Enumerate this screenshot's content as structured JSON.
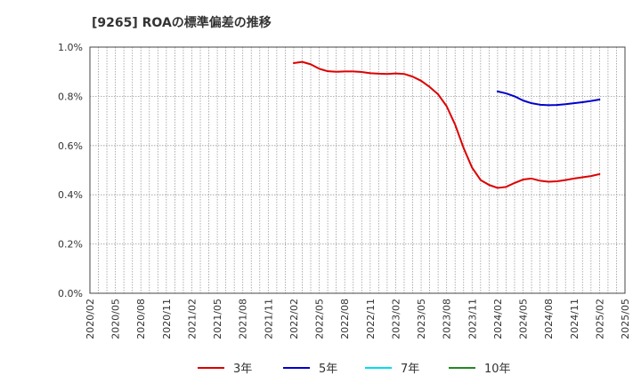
{
  "chart_data": {
    "type": "line",
    "title": "[9265]  ROAの標準偏差の推移",
    "xlabel": "",
    "ylabel": "",
    "ylim": [
      0,
      1.0
    ],
    "y_ticks": [
      0.0,
      0.2,
      0.4,
      0.6,
      0.8,
      1.0
    ],
    "y_tick_labels": [
      "0.0%",
      "0.2%",
      "0.4%",
      "0.6%",
      "0.8%",
      "1.0%"
    ],
    "x_start": "2020/02",
    "x_end": "2025/05",
    "x_tick_labels": [
      "2020/02",
      "2020/05",
      "2020/08",
      "2020/11",
      "2021/02",
      "2021/05",
      "2021/08",
      "2021/11",
      "2022/02",
      "2022/05",
      "2022/08",
      "2022/11",
      "2023/02",
      "2023/05",
      "2023/08",
      "2023/11",
      "2024/02",
      "2024/05",
      "2024/08",
      "2024/11",
      "2025/02",
      "2025/05"
    ],
    "grid": true,
    "legend_position": "bottom",
    "series": [
      {
        "name": "3年",
        "color": "#dd0000",
        "x": [
          "2022/02",
          "2022/03",
          "2022/04",
          "2022/05",
          "2022/06",
          "2022/07",
          "2022/08",
          "2022/09",
          "2022/10",
          "2022/11",
          "2022/12",
          "2023/01",
          "2023/02",
          "2023/03",
          "2023/04",
          "2023/05",
          "2023/06",
          "2023/07",
          "2023/08",
          "2023/09",
          "2023/10",
          "2023/11",
          "2023/12",
          "2024/01",
          "2024/02",
          "2024/03",
          "2024/04",
          "2024/05",
          "2024/06",
          "2024/07",
          "2024/08",
          "2024/09",
          "2024/10",
          "2024/11",
          "2024/12",
          "2025/01",
          "2025/02"
        ],
        "values": [
          0.935,
          0.94,
          0.93,
          0.912,
          0.902,
          0.9,
          0.901,
          0.901,
          0.899,
          0.894,
          0.892,
          0.891,
          0.893,
          0.891,
          0.88,
          0.863,
          0.838,
          0.808,
          0.76,
          0.685,
          0.59,
          0.51,
          0.46,
          0.44,
          0.428,
          0.432,
          0.448,
          0.462,
          0.466,
          0.457,
          0.453,
          0.455,
          0.46,
          0.466,
          0.471,
          0.476,
          0.484
        ]
      },
      {
        "name": "5年",
        "color": "#0000cc",
        "x": [
          "2024/02",
          "2024/03",
          "2024/04",
          "2024/05",
          "2024/06",
          "2024/07",
          "2024/08",
          "2024/09",
          "2024/10",
          "2024/11",
          "2024/12",
          "2025/01",
          "2025/02"
        ],
        "values": [
          0.82,
          0.812,
          0.8,
          0.783,
          0.772,
          0.766,
          0.764,
          0.765,
          0.768,
          0.772,
          0.776,
          0.781,
          0.787
        ]
      },
      {
        "name": "7年",
        "color": "#00ddee",
        "x": [],
        "values": []
      },
      {
        "name": "10年",
        "color": "#228822",
        "x": [],
        "values": []
      }
    ]
  }
}
